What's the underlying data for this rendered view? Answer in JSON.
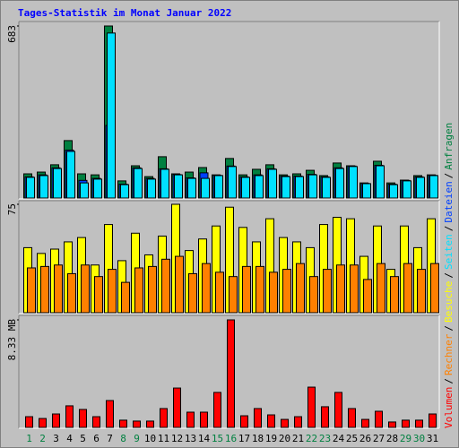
{
  "title": "Tages-Statistik im Monat Januar 2022",
  "legend_separator": "/",
  "categories": [
    "1",
    "2",
    "3",
    "4",
    "5",
    "6",
    "7",
    "8",
    "9",
    "10",
    "11",
    "12",
    "13",
    "14",
    "15",
    "16",
    "17",
    "18",
    "19",
    "20",
    "21",
    "22",
    "23",
    "24",
    "25",
    "26",
    "27",
    "28",
    "29",
    "30",
    "31"
  ],
  "category_colors": [
    "#008040",
    "#008040",
    "#000000",
    "#000000",
    "#000000",
    "#000000",
    "#000000",
    "#008040",
    "#008040",
    "#000000",
    "#000000",
    "#000000",
    "#000000",
    "#000000",
    "#008040",
    "#008040",
    "#000000",
    "#000000",
    "#000000",
    "#000000",
    "#000000",
    "#008040",
    "#008040",
    "#000000",
    "#000000",
    "#000000",
    "#000000",
    "#000000",
    "#008040",
    "#008040",
    "#000000"
  ],
  "chart_data": [
    {
      "type": "bar",
      "ylim": [
        0,
        683
      ],
      "yticks": [
        683
      ],
      "series": [
        {
          "name": "Anfragen",
          "color": "#008040",
          "values": [
            96,
            103,
            132,
            228,
            96,
            92,
            683,
            68,
            128,
            85,
            164,
            96,
            103,
            121,
            92,
            157,
            92,
            114,
            132,
            92,
            96,
            110,
            89,
            139,
            128,
            60,
            146,
            60,
            71,
            89,
            92
          ]
        },
        {
          "name": "Dateien",
          "color": "#0040ff",
          "values": [
            84,
            92,
            120,
            190,
            70,
            78,
            288,
            55,
            120,
            78,
            116,
            93,
            80,
            100,
            90,
            127,
            84,
            92,
            116,
            87,
            87,
            94,
            84,
            120,
            127,
            58,
            130,
            55,
            70,
            84,
            90
          ]
        },
        {
          "name": "Seiten",
          "color": "#00e0ff",
          "values": [
            82,
            89,
            117,
            185,
            60,
            75,
            655,
            53,
            117,
            75,
            114,
            92,
            78,
            78,
            89,
            125,
            82,
            89,
            114,
            85,
            85,
            92,
            82,
            117,
            125,
            57,
            128,
            53,
            68,
            82,
            89
          ]
        }
      ]
    },
    {
      "type": "bar",
      "ylim": [
        0,
        75
      ],
      "yticks": [
        75
      ],
      "series": [
        {
          "name": "Besuche",
          "color": "#ffff00",
          "values": [
            45,
            41,
            44,
            49,
            52,
            33,
            61,
            36,
            55,
            40,
            53,
            75,
            43,
            51,
            60,
            73,
            59,
            49,
            65,
            52,
            49,
            45,
            61,
            66,
            65,
            39,
            60,
            30,
            60,
            45,
            65
          ]
        },
        {
          "name": "Rechner",
          "color": "#ff8000",
          "values": [
            31,
            32,
            33,
            27,
            33,
            25,
            30,
            21,
            31,
            32,
            37,
            39,
            27,
            34,
            28,
            25,
            32,
            32,
            28,
            30,
            34,
            25,
            30,
            33,
            33,
            23,
            34,
            25,
            34,
            30,
            34
          ]
        }
      ]
    },
    {
      "type": "bar",
      "ylim": [
        0,
        8.33
      ],
      "yticks": [
        {
          "value": 8.33,
          "label": "8.33 MB"
        }
      ],
      "series": [
        {
          "name": "Volumen",
          "color": "#ff0000",
          "values": [
            0.83,
            0.69,
            1.04,
            1.67,
            1.39,
            0.83,
            2.08,
            0.56,
            0.49,
            0.49,
            1.46,
            3.05,
            1.18,
            1.18,
            2.71,
            8.33,
            0.9,
            1.46,
            0.97,
            0.62,
            0.83,
            3.12,
            1.6,
            2.71,
            1.46,
            0.62,
            1.25,
            0.42,
            0.56,
            0.56,
            1.04
          ]
        }
      ]
    }
  ]
}
